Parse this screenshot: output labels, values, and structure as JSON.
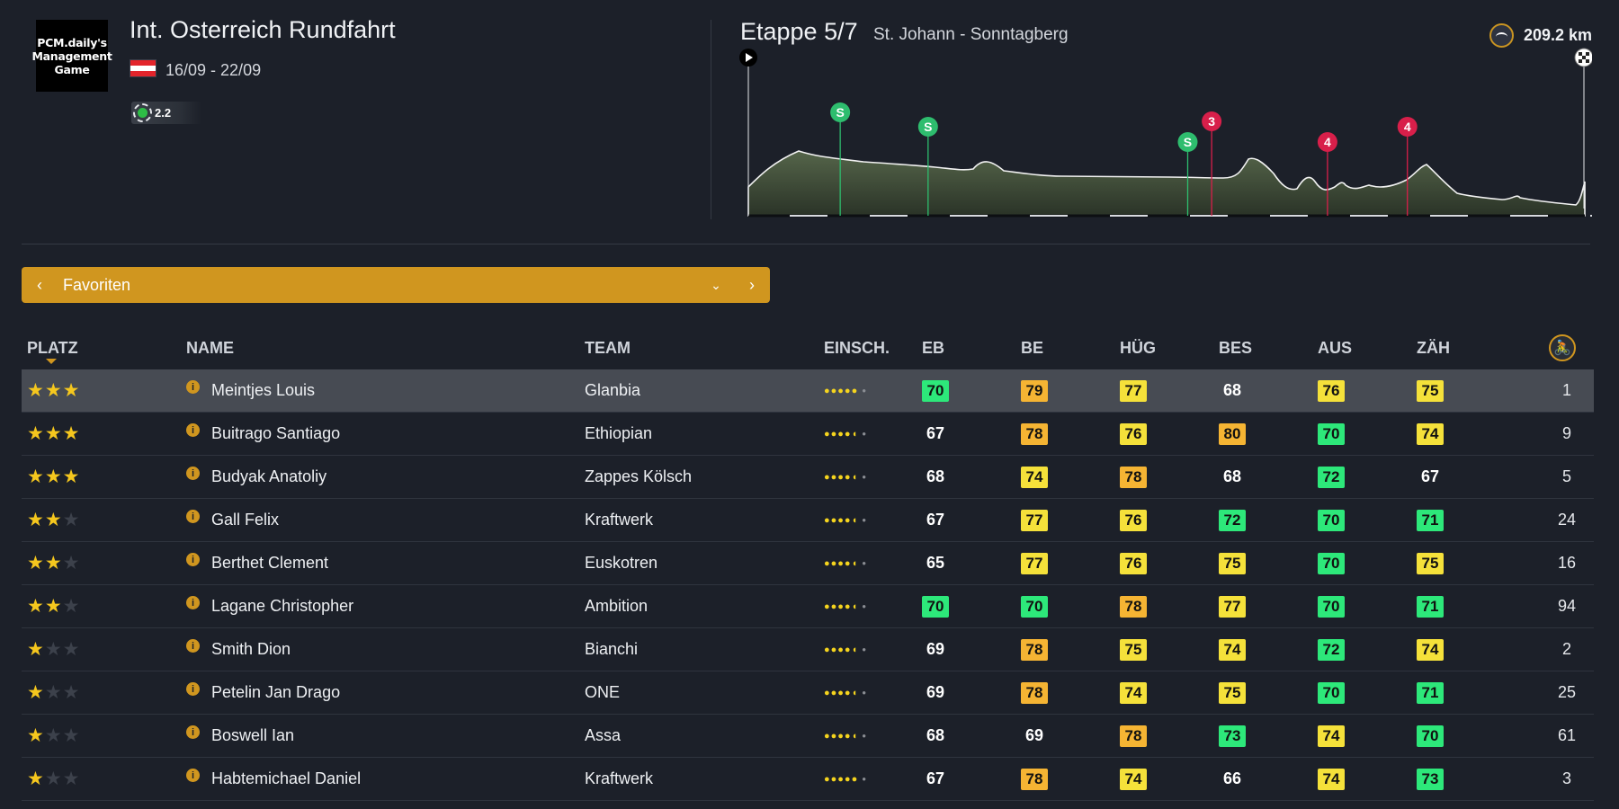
{
  "race": {
    "logo_text": "PCM.daily's Management Game",
    "title": "Int. Osterreich Rundfahrt",
    "dates": "16/09 - 22/09",
    "category": "2.2",
    "flag_colors": [
      "#e3242b",
      "#ffffff",
      "#e3242b"
    ]
  },
  "stage": {
    "title": "Etappe 5/7",
    "route": "St. Johann - Sonntagberg",
    "distance": "209.2 km",
    "sprint_label": "S",
    "sprint_color": "#2ebd6e",
    "climb_color": "#d81f4a",
    "markers": [
      {
        "km": 23,
        "type": "sprint",
        "label": "S"
      },
      {
        "km": 45,
        "type": "sprint",
        "label": "S"
      },
      {
        "km": 110,
        "type": "sprint",
        "label": "S"
      },
      {
        "km": 116,
        "type": "climb",
        "label": "3"
      },
      {
        "km": 145,
        "type": "climb",
        "label": "4"
      },
      {
        "km": 165,
        "type": "climb",
        "label": "4"
      }
    ]
  },
  "selector": {
    "label": "Favoriten",
    "prev_icon": "chevron-left-icon",
    "next_icon": "chevron-right-icon",
    "dropdown_icon": "chevron-down-icon"
  },
  "table": {
    "headers": {
      "platz": "PLATZ",
      "name": "NAME",
      "team": "TEAM",
      "einsch": "EINSCH.",
      "eb": "EB",
      "be": "BE",
      "hug": "HÜG",
      "bes": "BES",
      "aus": "AUS",
      "zah": "ZÄH",
      "rank_icon": "cyclist-icon"
    },
    "info_glyph": "i",
    "colors": {
      "green": "#2de87a",
      "yellow": "#f5e13a",
      "orange": "#f5b433",
      "plain": "#ffffff"
    },
    "rows": [
      {
        "stars": 3,
        "name": "Meintjes Louis",
        "team": "Glanbia",
        "form": "●●●●●",
        "stats": [
          [
            70,
            "g"
          ],
          [
            79,
            "o"
          ],
          [
            77,
            "y"
          ],
          [
            68,
            "n"
          ],
          [
            76,
            "y"
          ],
          [
            75,
            "y"
          ]
        ],
        "rank": "1"
      },
      {
        "stars": 3,
        "name": "Buitrago Santiago",
        "team": "Ethiopian",
        "form": "●●●●◖",
        "stats": [
          [
            67,
            "n"
          ],
          [
            78,
            "o"
          ],
          [
            76,
            "y"
          ],
          [
            80,
            "o"
          ],
          [
            70,
            "g"
          ],
          [
            74,
            "y"
          ]
        ],
        "rank": "9"
      },
      {
        "stars": 3,
        "name": "Budyak Anatoliy",
        "team": "Zappes Kölsch",
        "form": "●●●●◖",
        "stats": [
          [
            68,
            "n"
          ],
          [
            74,
            "y"
          ],
          [
            78,
            "o"
          ],
          [
            68,
            "n"
          ],
          [
            72,
            "g"
          ],
          [
            67,
            "n"
          ]
        ],
        "rank": "5"
      },
      {
        "stars": 2,
        "name": "Gall Felix",
        "team": "Kraftwerk",
        "form": "●●●●◖",
        "stats": [
          [
            67,
            "n"
          ],
          [
            77,
            "y"
          ],
          [
            76,
            "y"
          ],
          [
            72,
            "g"
          ],
          [
            70,
            "g"
          ],
          [
            71,
            "g"
          ]
        ],
        "rank": "24"
      },
      {
        "stars": 2,
        "name": "Berthet Clement",
        "team": "Euskotren",
        "form": "●●●●◖",
        "stats": [
          [
            65,
            "n"
          ],
          [
            77,
            "y"
          ],
          [
            76,
            "y"
          ],
          [
            75,
            "y"
          ],
          [
            70,
            "g"
          ],
          [
            75,
            "y"
          ]
        ],
        "rank": "16"
      },
      {
        "stars": 2,
        "name": "Lagane Christopher",
        "team": "Ambition",
        "form": "●●●●◖",
        "stats": [
          [
            70,
            "g"
          ],
          [
            70,
            "g"
          ],
          [
            78,
            "o"
          ],
          [
            77,
            "y"
          ],
          [
            70,
            "g"
          ],
          [
            71,
            "g"
          ]
        ],
        "rank": "94"
      },
      {
        "stars": 1,
        "name": "Smith Dion",
        "team": "Bianchi",
        "form": "●●●●◖",
        "stats": [
          [
            69,
            "n"
          ],
          [
            78,
            "o"
          ],
          [
            75,
            "y"
          ],
          [
            74,
            "y"
          ],
          [
            72,
            "g"
          ],
          [
            74,
            "y"
          ]
        ],
        "rank": "2"
      },
      {
        "stars": 1,
        "name": "Petelin Jan Drago",
        "team": "ONE",
        "form": "●●●●◖",
        "stats": [
          [
            69,
            "n"
          ],
          [
            78,
            "o"
          ],
          [
            74,
            "y"
          ],
          [
            75,
            "y"
          ],
          [
            70,
            "g"
          ],
          [
            71,
            "g"
          ]
        ],
        "rank": "25"
      },
      {
        "stars": 1,
        "name": "Boswell Ian",
        "team": "Assa",
        "form": "●●●●◖",
        "stats": [
          [
            68,
            "n"
          ],
          [
            69,
            "n"
          ],
          [
            78,
            "o"
          ],
          [
            73,
            "g"
          ],
          [
            74,
            "y"
          ],
          [
            70,
            "g"
          ]
        ],
        "rank": "61"
      },
      {
        "stars": 1,
        "name": "Habtemichael Daniel",
        "team": "Kraftwerk",
        "form": "●●●●●",
        "stats": [
          [
            67,
            "n"
          ],
          [
            78,
            "o"
          ],
          [
            74,
            "y"
          ],
          [
            66,
            "n"
          ],
          [
            74,
            "y"
          ],
          [
            73,
            "g"
          ]
        ],
        "rank": "3"
      }
    ]
  }
}
